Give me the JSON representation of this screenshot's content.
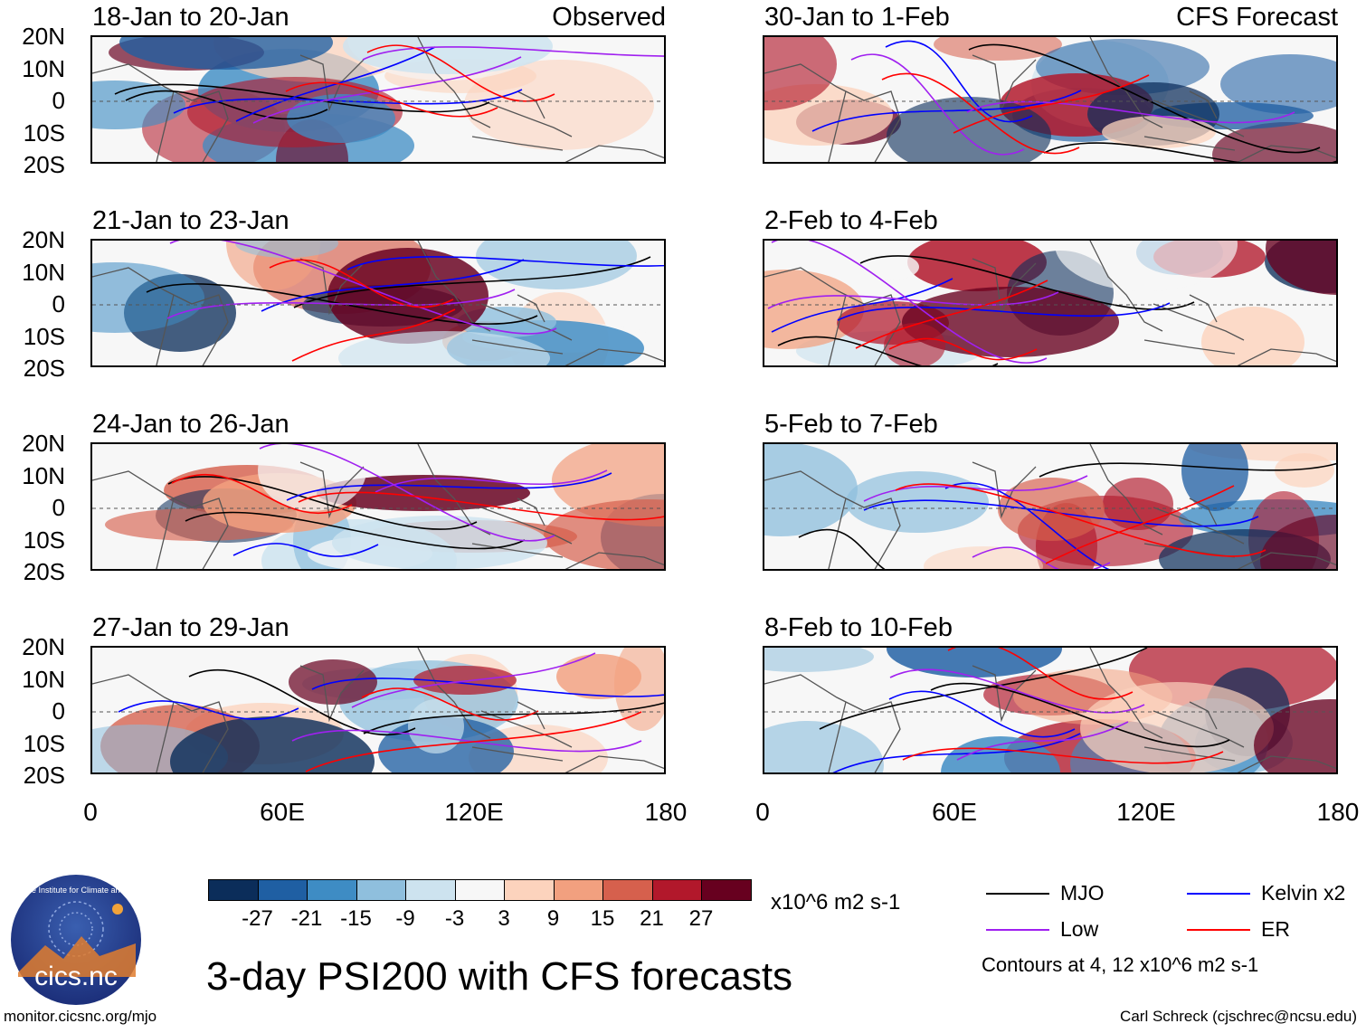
{
  "title": "3-day PSI200 with CFS forecasts",
  "panels_left_header": "Observed",
  "panels_right_header": "CFS Forecast",
  "left_panels": [
    {
      "label": "18-Jan to 20-Jan"
    },
    {
      "label": "21-Jan to 23-Jan"
    },
    {
      "label": "24-Jan to 26-Jan"
    },
    {
      "label": "27-Jan to 29-Jan"
    }
  ],
  "right_panels": [
    {
      "label": "30-Jan to 1-Feb"
    },
    {
      "label": "2-Feb to 4-Feb"
    },
    {
      "label": "5-Feb to 7-Feb"
    },
    {
      "label": "8-Feb to 10-Feb"
    }
  ],
  "lat_labels": [
    "20N",
    "10N",
    "0",
    "10S",
    "20S"
  ],
  "lon_labels": [
    "0",
    "60E",
    "120E",
    "180"
  ],
  "colorbar": {
    "colors": [
      "#0b2d5a",
      "#1f5fa3",
      "#3e8cc4",
      "#8fbfdd",
      "#cde3ef",
      "#f7f7f7",
      "#fcd3bd",
      "#f2a07f",
      "#d6604d",
      "#b2182b",
      "#67001f"
    ],
    "labels": [
      "-27",
      "-21",
      "-15",
      "-9",
      "-3",
      "3",
      "9",
      "15",
      "21",
      "27"
    ],
    "units": "x10^6 m2 s-1"
  },
  "contour_legend": [
    {
      "name": "MJO",
      "color": "#000000"
    },
    {
      "name": "Kelvin x2",
      "color": "#0000ff"
    },
    {
      "name": "Low",
      "color": "#a020f0"
    },
    {
      "name": "ER",
      "color": "#ff0000"
    }
  ],
  "contours_note": "Contours at 4, 12 x10^6 m2 s-1",
  "logo_text": "cics.nc",
  "logo_ring_text": "Cooperative Institute for Climate and Satellites",
  "footer_left": "monitor.cicsnc.org/mjo",
  "footer_right": "Carl Schreck (cjschrec@ncsu.edu)"
}
